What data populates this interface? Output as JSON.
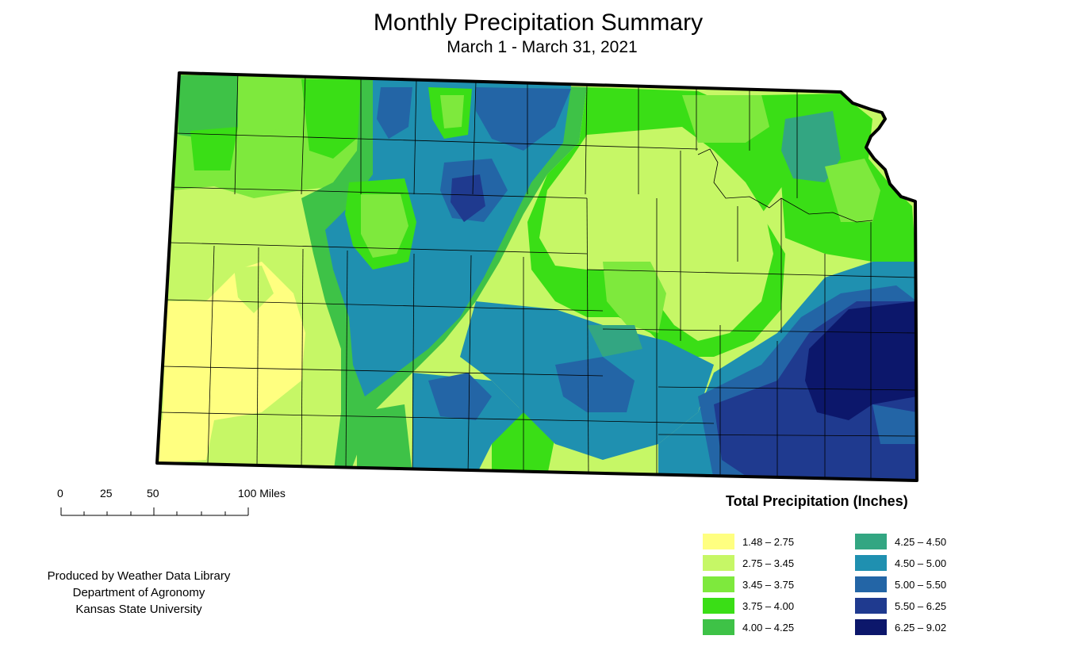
{
  "header": {
    "title": "Monthly Precipitation Summary",
    "subtitle": "March 1 - March 31, 2021"
  },
  "scalebar": {
    "ticks": [
      "0",
      "25",
      "50",
      "100 Miles"
    ]
  },
  "credits": {
    "line1": "Produced by Weather Data Library",
    "line2": "Department of Agronomy",
    "line3": "Kansas State University"
  },
  "legend": {
    "title": "Total Precipitation (Inches)",
    "items": [
      {
        "label": "1.48 – 2.75",
        "color": "#ffff80"
      },
      {
        "label": "2.75 – 3.45",
        "color": "#c6f766"
      },
      {
        "label": "3.45 – 3.75",
        "color": "#7ee93d"
      },
      {
        "label": "3.75 – 4.00",
        "color": "#3ade16"
      },
      {
        "label": "4.00 – 4.25",
        "color": "#3ec247"
      },
      {
        "label": "4.25 – 4.50",
        "color": "#33a682"
      },
      {
        "label": "4.50 – 5.00",
        "color": "#1f90b0"
      },
      {
        "label": "5.00 – 5.50",
        "color": "#2365a6"
      },
      {
        "label": "5.50 – 6.25",
        "color": "#1f3a8f"
      },
      {
        "label": "6.25 – 9.02",
        "color": "#0c176b"
      }
    ]
  }
}
